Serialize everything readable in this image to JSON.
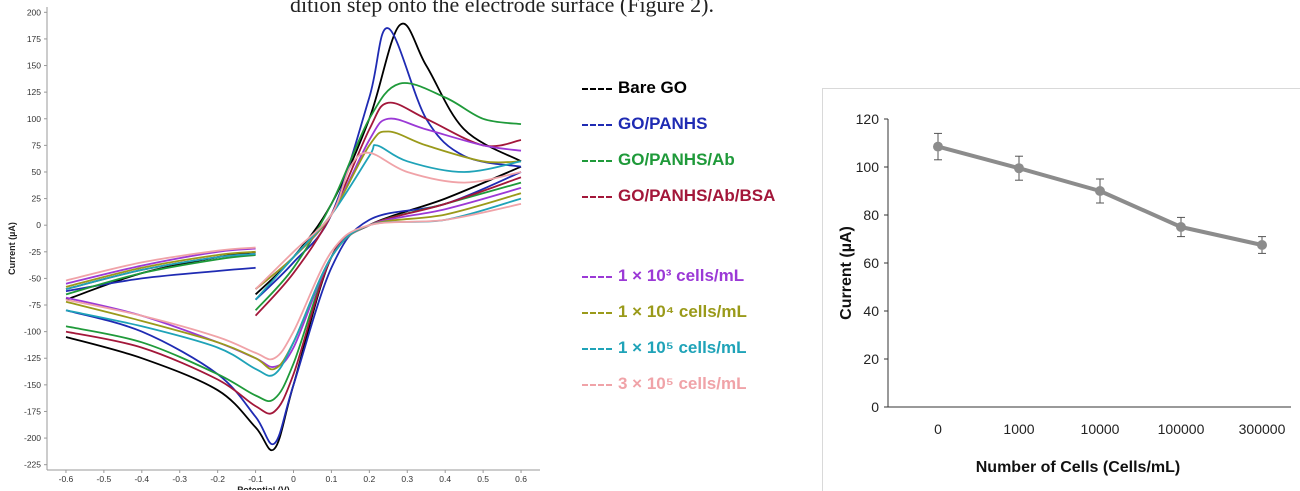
{
  "header": {
    "text": "dition step onto the electrode surface (Figure 2)."
  },
  "colors": {
    "bare_go": "#000000",
    "go_panhs": "#1f2bb3",
    "go_panhs_ab": "#1f9a3a",
    "go_panhs_ab_bsa": "#a3173a",
    "c1e3": "#9b39d6",
    "c1e4": "#9a9a1a",
    "c1e5": "#1fa3b8",
    "c3e5": "#f0a3a8",
    "trend": "#8c8c8c"
  },
  "chart_data": [
    {
      "type": "line",
      "title": "",
      "xlabel": "Potential (V)",
      "ylabel": "Current (µA)",
      "xlim": [
        -0.65,
        0.65
      ],
      "ylim": [
        -230,
        205
      ],
      "xticks": [
        "-0.6",
        "-0.5",
        "-0.4",
        "-0.3",
        "-0.2",
        "-0.1",
        "0",
        "0.1",
        "0.2",
        "0.3",
        "0.4",
        "0.5",
        "0.6"
      ],
      "yticks": [
        "200",
        "175",
        "150",
        "125",
        "100",
        "75",
        "50",
        "25",
        "0",
        "-25",
        "-50",
        "-75",
        "-100",
        "-125",
        "-150",
        "-175",
        "-200",
        "-225"
      ],
      "grid": false,
      "legend_position": "right",
      "series": [
        {
          "name": "Bare GO",
          "color_key": "bare_go",
          "forward": [
            [
              -0.1,
              -65
            ],
            [
              0,
              -30
            ],
            [
              0.1,
              20
            ],
            [
              0.2,
              100
            ],
            [
              0.28,
              188
            ],
            [
              0.35,
              150
            ],
            [
              0.45,
              90
            ],
            [
              0.6,
              60
            ]
          ],
          "reverse": [
            [
              0.6,
              55
            ],
            [
              0.4,
              25
            ],
            [
              0.2,
              0
            ],
            [
              0.1,
              -30
            ],
            [
              0,
              -150
            ],
            [
              -0.05,
              -210
            ],
            [
              -0.1,
              -190
            ],
            [
              -0.2,
              -155
            ],
            [
              -0.4,
              -125
            ],
            [
              -0.6,
              -105
            ]
          ],
          "left": [
            [
              -0.6,
              -70
            ],
            [
              -0.4,
              -45
            ],
            [
              -0.2,
              -30
            ],
            [
              -0.1,
              -25
            ]
          ]
        },
        {
          "name": "GO/PANHS",
          "color_key": "go_panhs",
          "forward": [
            [
              -0.1,
              -70
            ],
            [
              0,
              -35
            ],
            [
              0.1,
              10
            ],
            [
              0.2,
              120
            ],
            [
              0.25,
              185
            ],
            [
              0.35,
              100
            ],
            [
              0.45,
              65
            ],
            [
              0.6,
              55
            ]
          ],
          "reverse": [
            [
              0.6,
              50
            ],
            [
              0.4,
              20
            ],
            [
              0.2,
              5
            ],
            [
              0.1,
              -40
            ],
            [
              0,
              -150
            ],
            [
              -0.05,
              -205
            ],
            [
              -0.1,
              -180
            ],
            [
              -0.2,
              -140
            ],
            [
              -0.4,
              -100
            ],
            [
              -0.6,
              -80
            ]
          ],
          "left": [
            [
              -0.6,
              -62
            ],
            [
              -0.4,
              -50
            ],
            [
              -0.2,
              -43
            ],
            [
              -0.1,
              -40
            ]
          ]
        },
        {
          "name": "GO/PANHS/Ab",
          "color_key": "go_panhs_ab",
          "forward": [
            [
              -0.1,
              -80
            ],
            [
              0,
              -40
            ],
            [
              0.1,
              20
            ],
            [
              0.2,
              100
            ],
            [
              0.28,
              133
            ],
            [
              0.4,
              120
            ],
            [
              0.5,
              100
            ],
            [
              0.6,
              95
            ]
          ],
          "reverse": [
            [
              0.6,
              40
            ],
            [
              0.4,
              20
            ],
            [
              0.2,
              0
            ],
            [
              0.1,
              -30
            ],
            [
              0,
              -130
            ],
            [
              -0.05,
              -163
            ],
            [
              -0.1,
              -160
            ],
            [
              -0.2,
              -140
            ],
            [
              -0.4,
              -110
            ],
            [
              -0.6,
              -95
            ]
          ],
          "left": [
            [
              -0.6,
              -65
            ],
            [
              -0.4,
              -45
            ],
            [
              -0.2,
              -32
            ],
            [
              -0.1,
              -28
            ]
          ]
        },
        {
          "name": "GO/PANHS/Ab/BSA",
          "color_key": "go_panhs_ab_bsa",
          "forward": [
            [
              -0.1,
              -85
            ],
            [
              0,
              -45
            ],
            [
              0.1,
              10
            ],
            [
              0.2,
              90
            ],
            [
              0.25,
              115
            ],
            [
              0.35,
              100
            ],
            [
              0.5,
              75
            ],
            [
              0.6,
              80
            ]
          ],
          "reverse": [
            [
              0.6,
              45
            ],
            [
              0.4,
              20
            ],
            [
              0.2,
              0
            ],
            [
              0.1,
              -30
            ],
            [
              0,
              -140
            ],
            [
              -0.05,
              -175
            ],
            [
              -0.1,
              -170
            ],
            [
              -0.2,
              -145
            ],
            [
              -0.4,
              -115
            ],
            [
              -0.6,
              -100
            ]
          ],
          "left": [
            [
              -0.6,
              -60
            ],
            [
              -0.4,
              -42
            ],
            [
              -0.2,
              -30
            ],
            [
              -0.1,
              -27
            ]
          ]
        },
        {
          "name": "1 × 10³ cells/mL",
          "color_key": "c1e3",
          "forward": [
            [
              -0.1,
              -60
            ],
            [
              0,
              -30
            ],
            [
              0.1,
              10
            ],
            [
              0.2,
              80
            ],
            [
              0.25,
              100
            ],
            [
              0.35,
              90
            ],
            [
              0.5,
              75
            ],
            [
              0.6,
              70
            ]
          ],
          "reverse": [
            [
              0.6,
              35
            ],
            [
              0.4,
              15
            ],
            [
              0.2,
              0
            ],
            [
              0.1,
              -30
            ],
            [
              0,
              -115
            ],
            [
              -0.05,
              -133
            ],
            [
              -0.1,
              -125
            ],
            [
              -0.2,
              -110
            ],
            [
              -0.4,
              -85
            ],
            [
              -0.6,
              -68
            ]
          ],
          "left": [
            [
              -0.6,
              -55
            ],
            [
              -0.4,
              -38
            ],
            [
              -0.2,
              -25
            ],
            [
              -0.1,
              -22
            ]
          ]
        },
        {
          "name": "1 × 10⁴ cells/mL",
          "color_key": "c1e4",
          "forward": [
            [
              -0.1,
              -60
            ],
            [
              0,
              -30
            ],
            [
              0.1,
              10
            ],
            [
              0.2,
              75
            ],
            [
              0.25,
              88
            ],
            [
              0.35,
              75
            ],
            [
              0.5,
              60
            ],
            [
              0.6,
              60
            ]
          ],
          "reverse": [
            [
              0.6,
              30
            ],
            [
              0.4,
              10
            ],
            [
              0.2,
              0
            ],
            [
              0.1,
              -30
            ],
            [
              0,
              -110
            ],
            [
              -0.05,
              -135
            ],
            [
              -0.1,
              -125
            ],
            [
              -0.2,
              -110
            ],
            [
              -0.4,
              -90
            ],
            [
              -0.6,
              -72
            ]
          ],
          "left": [
            [
              -0.6,
              -58
            ],
            [
              -0.4,
              -40
            ],
            [
              -0.2,
              -28
            ],
            [
              -0.1,
              -25
            ]
          ]
        },
        {
          "name": "1 × 10⁵ cells/mL",
          "color_key": "c1e5",
          "forward": [
            [
              -0.1,
              -70
            ],
            [
              0,
              -30
            ],
            [
              0.1,
              10
            ],
            [
              0.2,
              65
            ],
            [
              0.22,
              75
            ],
            [
              0.3,
              60
            ],
            [
              0.45,
              50
            ],
            [
              0.6,
              60
            ]
          ],
          "reverse": [
            [
              0.6,
              25
            ],
            [
              0.4,
              5
            ],
            [
              0.2,
              0
            ],
            [
              0.1,
              -30
            ],
            [
              0,
              -110
            ],
            [
              -0.05,
              -140
            ],
            [
              -0.1,
              -135
            ],
            [
              -0.2,
              -115
            ],
            [
              -0.4,
              -95
            ],
            [
              -0.6,
              -80
            ]
          ],
          "left": [
            [
              -0.6,
              -60
            ],
            [
              -0.4,
              -42
            ],
            [
              -0.2,
              -30
            ],
            [
              -0.1,
              -27
            ]
          ]
        },
        {
          "name": "3 × 10⁵ cells/mL",
          "color_key": "c3e5",
          "forward": [
            [
              -0.1,
              -60
            ],
            [
              0,
              -25
            ],
            [
              0.1,
              10
            ],
            [
              0.15,
              55
            ],
            [
              0.2,
              68
            ],
            [
              0.3,
              50
            ],
            [
              0.45,
              40
            ],
            [
              0.6,
              50
            ]
          ],
          "reverse": [
            [
              0.6,
              20
            ],
            [
              0.4,
              5
            ],
            [
              0.2,
              0
            ],
            [
              0.1,
              -25
            ],
            [
              0,
              -100
            ],
            [
              -0.05,
              -125
            ],
            [
              -0.1,
              -120
            ],
            [
              -0.2,
              -105
            ],
            [
              -0.4,
              -85
            ],
            [
              -0.6,
              -70
            ]
          ],
          "left": [
            [
              -0.6,
              -52
            ],
            [
              -0.4,
              -35
            ],
            [
              -0.2,
              -24
            ],
            [
              -0.1,
              -21
            ]
          ]
        }
      ]
    },
    {
      "type": "line",
      "title": "",
      "xlabel": "Number of Cells (Cells/mL)",
      "ylabel": "Current (µA)",
      "categories": [
        "0",
        "1000",
        "10000",
        "100000",
        "300000"
      ],
      "ylim": [
        0,
        120
      ],
      "yticks": [
        "0",
        "20",
        "40",
        "60",
        "80",
        "100",
        "120"
      ],
      "grid": false,
      "series": [
        {
          "values": [
            108.5,
            99.5,
            90,
            75,
            67.5
          ],
          "errors": [
            5.5,
            5,
            5,
            4,
            3.5
          ],
          "color_key": "trend"
        }
      ]
    }
  ]
}
